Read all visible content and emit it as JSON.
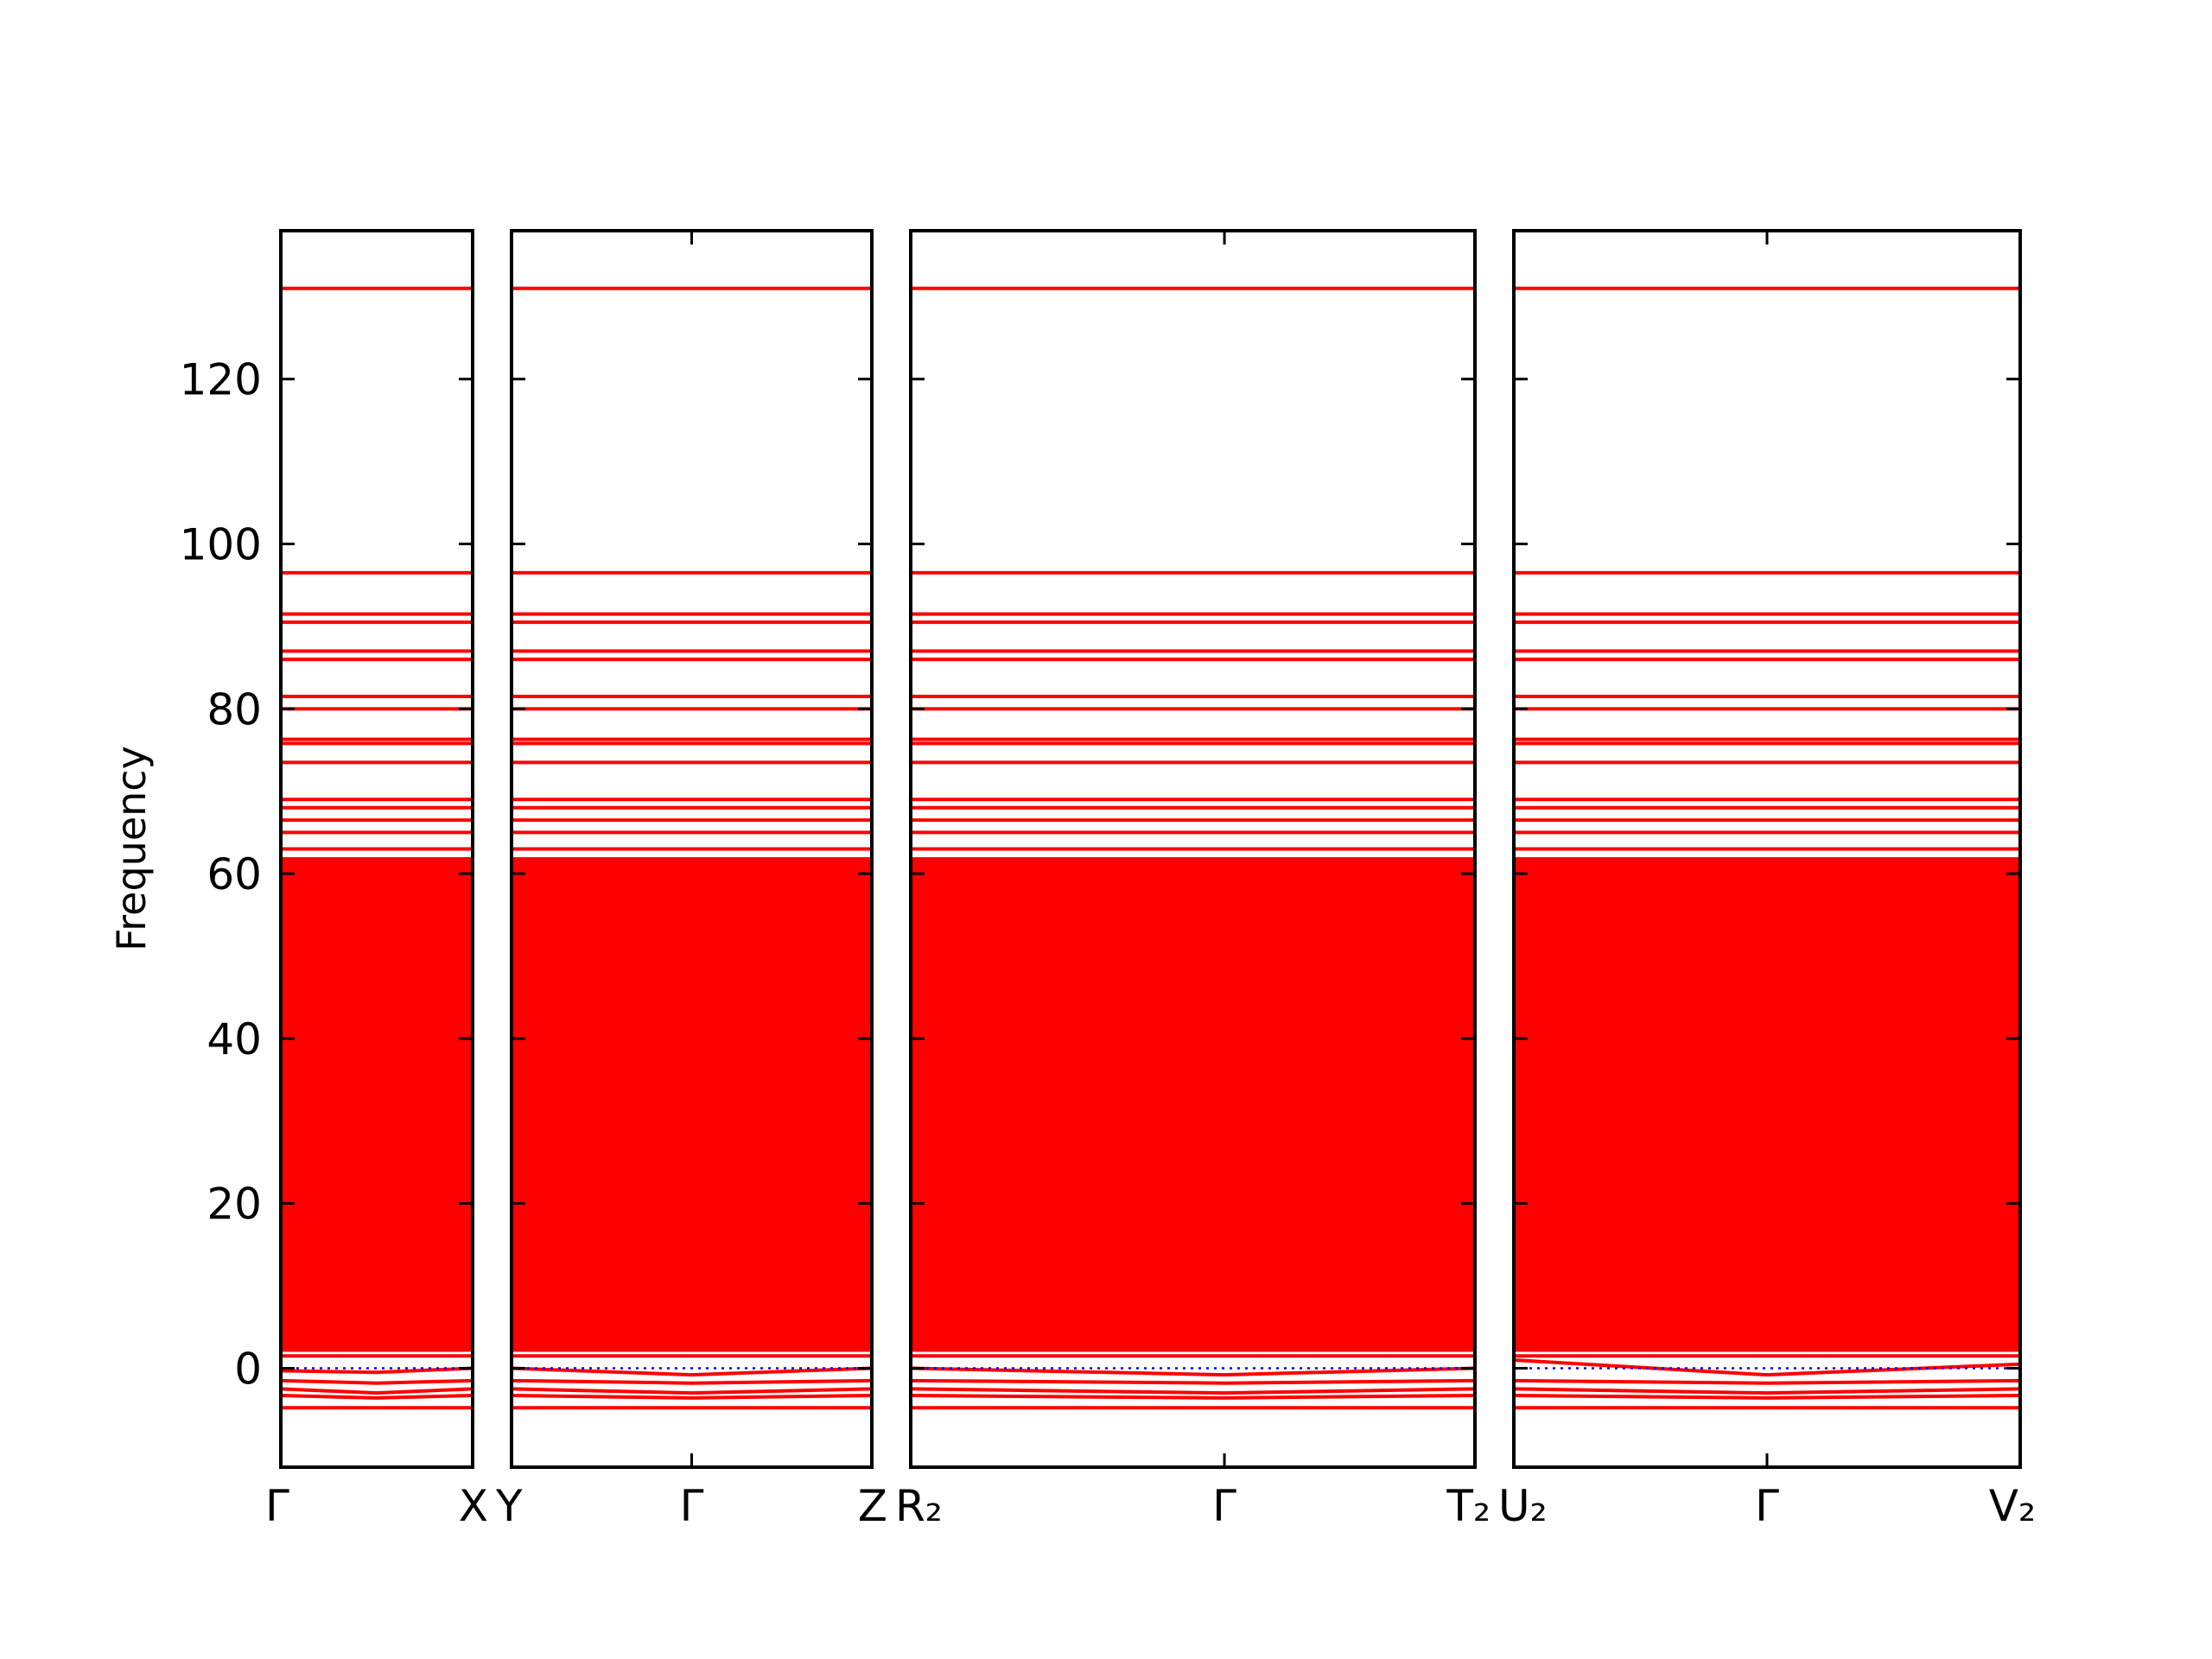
{
  "chart_data": {
    "type": "line",
    "ylabel": "Frequency",
    "ylim": [
      -12,
      138
    ],
    "yticks": [
      0,
      20,
      40,
      60,
      80,
      100,
      120
    ],
    "color": "#ff0000",
    "zero_line": {
      "value": 0,
      "color": "#0000ff"
    },
    "dense_band": [
      2,
      62
    ],
    "panels": [
      {
        "x": [
          0,
          0.5,
          1
        ],
        "xticks": [
          {
            "value": 0,
            "label": "Γ"
          },
          {
            "value": 1,
            "label": "X"
          }
        ]
      },
      {
        "x": [
          0,
          0.5,
          1
        ],
        "xticks": [
          {
            "value": 0,
            "label": "Y"
          },
          {
            "value": 0.5,
            "label": "Γ"
          },
          {
            "value": 1,
            "label": "Z"
          }
        ]
      },
      {
        "x": [
          0,
          0.556,
          1
        ],
        "xticks": [
          {
            "value": 0,
            "label": "R₂"
          },
          {
            "value": 0.556,
            "label": "Γ"
          },
          {
            "value": 1,
            "label": "T₂"
          }
        ]
      },
      {
        "x": [
          0,
          0.5,
          1
        ],
        "xticks": [
          {
            "value": 0,
            "label": "U₂"
          },
          {
            "value": 0.5,
            "label": "Γ"
          },
          {
            "value": 1,
            "label": "V₂"
          }
        ]
      }
    ],
    "series": [
      {
        "values": [
          [
            131,
            131,
            131
          ],
          [
            131,
            131,
            131
          ],
          [
            131,
            131,
            131
          ],
          [
            131,
            131,
            131
          ]
        ]
      },
      {
        "values": [
          [
            96.5,
            96.5,
            96.5
          ],
          [
            96.5,
            96.5,
            96.5
          ],
          [
            96.5,
            96.5,
            96.5
          ],
          [
            96.5,
            96.5,
            96.5
          ]
        ]
      },
      {
        "values": [
          [
            91.5,
            91.5,
            91.5
          ],
          [
            91.5,
            91.5,
            91.5
          ],
          [
            91.5,
            91.5,
            91.5
          ],
          [
            91.5,
            91.5,
            91.5
          ]
        ]
      },
      {
        "values": [
          [
            90.5,
            90.5,
            90.5
          ],
          [
            90.5,
            90.5,
            90.5
          ],
          [
            90.5,
            90.5,
            90.5
          ],
          [
            90.5,
            90.5,
            90.5
          ]
        ]
      },
      {
        "values": [
          [
            87,
            87,
            87
          ],
          [
            87,
            87,
            87
          ],
          [
            87,
            87,
            87
          ],
          [
            87,
            87,
            87
          ]
        ]
      },
      {
        "values": [
          [
            86,
            86,
            86
          ],
          [
            86,
            86,
            86
          ],
          [
            86,
            86,
            86
          ],
          [
            86,
            86,
            86
          ]
        ]
      },
      {
        "values": [
          [
            81.5,
            81.5,
            81.5
          ],
          [
            81.5,
            81.5,
            81.5
          ],
          [
            81.5,
            81.5,
            81.5
          ],
          [
            81.5,
            81.5,
            81.5
          ]
        ]
      },
      {
        "values": [
          [
            80,
            80,
            80
          ],
          [
            80,
            80,
            80
          ],
          [
            80,
            80,
            80
          ],
          [
            80,
            80,
            80
          ]
        ]
      },
      {
        "values": [
          [
            76.3,
            76.3,
            76.3
          ],
          [
            76.3,
            76.3,
            76.3
          ],
          [
            76.3,
            76.3,
            76.3
          ],
          [
            76.3,
            76.3,
            76.3
          ]
        ]
      },
      {
        "values": [
          [
            75.8,
            75.8,
            75.8
          ],
          [
            75.8,
            75.8,
            75.8
          ],
          [
            75.8,
            75.8,
            75.8
          ],
          [
            75.8,
            75.8,
            75.8
          ]
        ]
      },
      {
        "values": [
          [
            73.5,
            73.5,
            73.5
          ],
          [
            73.5,
            73.5,
            73.5
          ],
          [
            73.5,
            73.5,
            73.5
          ],
          [
            73.5,
            73.5,
            73.5
          ]
        ]
      },
      {
        "values": [
          [
            69,
            69,
            69
          ],
          [
            69,
            69,
            69
          ],
          [
            69,
            69,
            69
          ],
          [
            69,
            69,
            69
          ]
        ]
      },
      {
        "values": [
          [
            68,
            68,
            68
          ],
          [
            68,
            68,
            68
          ],
          [
            68,
            68,
            68
          ],
          [
            68,
            68,
            68
          ]
        ]
      },
      {
        "values": [
          [
            66.5,
            66.5,
            66.5
          ],
          [
            66.5,
            66.5,
            66.5
          ],
          [
            66.5,
            66.5,
            66.5
          ],
          [
            66.5,
            66.5,
            66.5
          ]
        ]
      },
      {
        "values": [
          [
            65,
            65,
            65
          ],
          [
            65,
            65,
            65
          ],
          [
            65,
            65,
            65
          ],
          [
            65,
            65,
            65
          ]
        ]
      },
      {
        "values": [
          [
            63,
            63,
            63
          ],
          [
            63,
            63,
            63
          ],
          [
            63,
            63,
            63
          ],
          [
            63,
            63,
            63
          ]
        ]
      },
      {
        "values": [
          [
            1.5,
            1.5,
            1.5
          ],
          [
            1.5,
            1.5,
            1.5
          ],
          [
            1.5,
            1.5,
            1.5
          ],
          [
            1.5,
            1.5,
            1.5
          ]
        ]
      },
      {
        "values": [
          [
            -0.3,
            -0.5,
            0
          ],
          [
            0,
            -0.8,
            0
          ],
          [
            0,
            -0.8,
            0
          ],
          [
            1,
            -0.8,
            0.5
          ]
        ]
      },
      {
        "values": [
          [
            -1.5,
            -1.8,
            -1.5
          ],
          [
            -1.5,
            -1.8,
            -1.5
          ],
          [
            -1.5,
            -1.8,
            -1.5
          ],
          [
            -1.5,
            -1.8,
            -1.5
          ]
        ]
      },
      {
        "values": [
          [
            -2.5,
            -3,
            -2.5
          ],
          [
            -2.5,
            -3,
            -2.5
          ],
          [
            -2.5,
            -3,
            -2.5
          ],
          [
            -2.5,
            -3,
            -2.5
          ]
        ]
      },
      {
        "values": [
          [
            -3.3,
            -3.6,
            -3.3
          ],
          [
            -3.3,
            -3.6,
            -3.3
          ],
          [
            -3.3,
            -3.6,
            -3.3
          ],
          [
            -3.3,
            -3.6,
            -3.3
          ]
        ]
      },
      {
        "values": [
          [
            -4.8,
            -4.8,
            -4.8
          ],
          [
            -4.8,
            -4.8,
            -4.8
          ],
          [
            -4.8,
            -4.8,
            -4.8
          ],
          [
            -4.8,
            -4.8,
            -4.8
          ]
        ]
      }
    ]
  }
}
